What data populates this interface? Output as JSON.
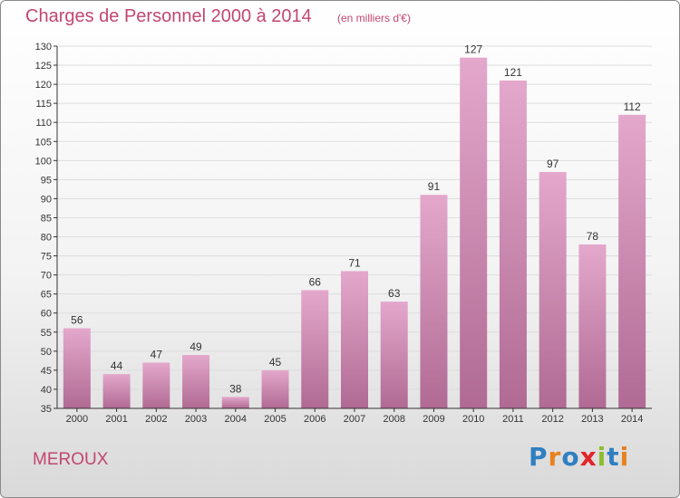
{
  "header": {
    "title": "Charges de Personnel 2000 à 2014",
    "subtitle": "(en milliers d'€)"
  },
  "footer": {
    "commune": "MEROUX",
    "logo_text": "Proxiti",
    "logo_colors": [
      "#2f7fc1",
      "#e8821e",
      "#2f7fc1",
      "#e3242b",
      "#8cbd2e",
      "#2f7fc1",
      "#e8821e"
    ]
  },
  "colors": {
    "bar_top": "#e4a8cc",
    "bar_bottom": "#b06a93",
    "grid": "#dddddd",
    "axis": "#333333",
    "accent": "#c2466f"
  },
  "chart_data": {
    "type": "bar",
    "categories": [
      "2000",
      "2001",
      "2002",
      "2003",
      "2004",
      "2005",
      "2006",
      "2007",
      "2008",
      "2009",
      "2010",
      "2011",
      "2012",
      "2013",
      "2014"
    ],
    "values": [
      56,
      44,
      47,
      49,
      38,
      45,
      66,
      71,
      63,
      91,
      127,
      121,
      97,
      78,
      112
    ],
    "title": "Charges de Personnel 2000 à 2014",
    "subtitle": "(en milliers d'€)",
    "xlabel": "",
    "ylabel": "",
    "ylim": [
      35,
      130
    ],
    "yticks": [
      35,
      40,
      45,
      50,
      55,
      60,
      65,
      70,
      75,
      80,
      85,
      90,
      95,
      100,
      105,
      110,
      115,
      120,
      125,
      130
    ],
    "grid": "horizontal",
    "legend": "none",
    "data_labels": true
  }
}
